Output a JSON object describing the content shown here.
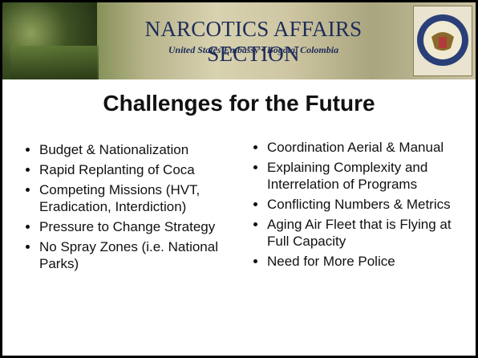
{
  "header": {
    "title": "NARCOTICS AFFAIRS SECTION",
    "subtitle": "United States Embassy • Bogota, Colombia"
  },
  "title": "Challenges for the Future",
  "columns": [
    {
      "items": [
        "Budget & Nationalization",
        "Rapid Replanting of Coca",
        "Competing Missions (HVT, Eradication, Interdiction)",
        "Pressure to Change Strategy",
        "No Spray Zones (i.e. National Parks)"
      ]
    },
    {
      "items": [
        "Coordination Aerial & Manual",
        "Explaining Complexity and Interrelation of Programs",
        "Conflicting Numbers & Metrics",
        "Aging Air Fleet that is Flying at Full Capacity",
        "Need for More Police"
      ]
    }
  ]
}
